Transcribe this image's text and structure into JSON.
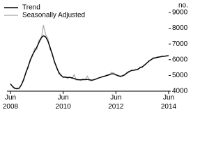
{
  "chart_data": {
    "type": "line",
    "unit_label": "no.",
    "categories": [
      "Jun 2008",
      null,
      null,
      null,
      null,
      null,
      null,
      null,
      null,
      null,
      null,
      null,
      null,
      null,
      null,
      null,
      null,
      null,
      null,
      null,
      null,
      null,
      null,
      null,
      "Jun 2010",
      null,
      null,
      null,
      null,
      null,
      null,
      null,
      null,
      null,
      null,
      null,
      null,
      null,
      null,
      null,
      null,
      null,
      null,
      null,
      null,
      null,
      null,
      null,
      "Jun 2012",
      null,
      null,
      null,
      null,
      null,
      null,
      null,
      null,
      null,
      null,
      null,
      null,
      null,
      null,
      null,
      null,
      null,
      null,
      null,
      null,
      null,
      null,
      null,
      "Jun 2014"
    ],
    "series": [
      {
        "name": "Trend",
        "color": "#000000",
        "values": [
          4450,
          4300,
          4180,
          4150,
          4200,
          4400,
          4750,
          5150,
          5550,
          5950,
          6300,
          6550,
          6800,
          7100,
          7400,
          7520,
          7450,
          7200,
          6800,
          6350,
          5900,
          5500,
          5200,
          5000,
          4900,
          4880,
          4870,
          4870,
          4850,
          4800,
          4750,
          4720,
          4720,
          4730,
          4740,
          4740,
          4720,
          4700,
          4720,
          4780,
          4830,
          4880,
          4920,
          4960,
          5000,
          5050,
          5100,
          5100,
          5050,
          4980,
          4950,
          4970,
          5050,
          5150,
          5250,
          5300,
          5330,
          5350,
          5400,
          5480,
          5550,
          5650,
          5780,
          5900,
          6000,
          6080,
          6120,
          6150,
          6180,
          6200,
          6220,
          6240,
          6260
        ]
      },
      {
        "name": "Seasonally Adjusted",
        "color": "#b3b3b3",
        "values": [
          4500,
          4250,
          4150,
          4200,
          4150,
          4450,
          4650,
          5250,
          5450,
          6050,
          6200,
          6700,
          6650,
          7250,
          7300,
          8200,
          7600,
          7350,
          6650,
          6450,
          5800,
          5600,
          5100,
          5050,
          4850,
          4950,
          4800,
          4900,
          4800,
          5050,
          4700,
          4750,
          4680,
          4780,
          4700,
          4950,
          4700,
          4650,
          4750,
          4750,
          4850,
          4850,
          4950,
          4950,
          5050,
          5000,
          5200,
          5150,
          5000,
          5000,
          4900,
          5000,
          5000,
          5200,
          5200,
          5350,
          5300,
          5400,
          5350,
          5550,
          5500,
          5700,
          5750,
          5950,
          6000,
          6150,
          6100,
          6200,
          6150,
          6250,
          6200,
          6250,
          6250
        ]
      }
    ],
    "ylim": [
      4000,
      9000
    ],
    "yticks": [
      4000,
      5000,
      6000,
      7000,
      8000,
      9000
    ]
  }
}
